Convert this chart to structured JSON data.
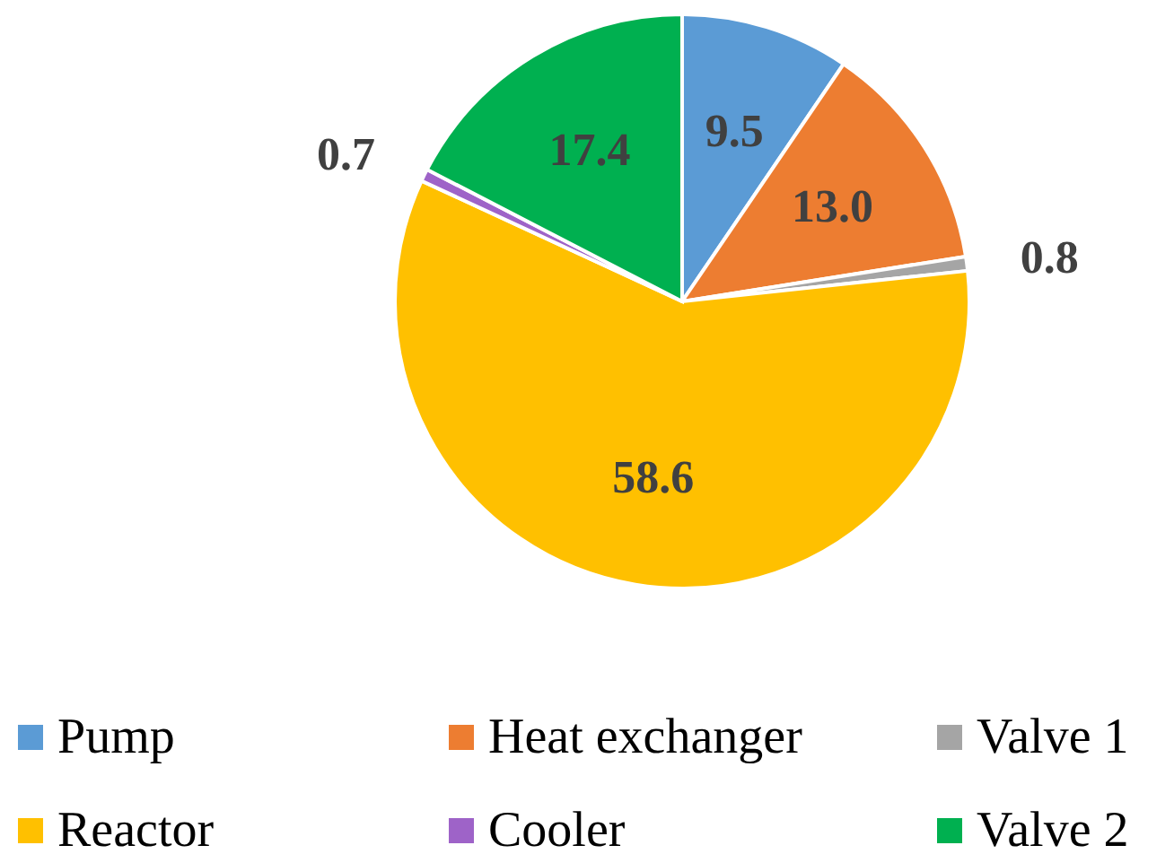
{
  "chart_data": {
    "type": "pie",
    "categories": [
      "Pump",
      "Heat exchanger",
      "Valve 1",
      "Reactor",
      "Cooler",
      "Valve 2"
    ],
    "values": [
      9.5,
      13.0,
      0.8,
      58.6,
      0.7,
      17.4
    ],
    "colors": [
      "#5b9bd5",
      "#ed7d31",
      "#a5a5a5",
      "#ffc000",
      "#9e63c8",
      "#00b050"
    ],
    "value_labels": [
      "9.5",
      "13.0",
      "0.8",
      "58.6",
      "0.7",
      "17.4"
    ],
    "legend": "bottom"
  }
}
